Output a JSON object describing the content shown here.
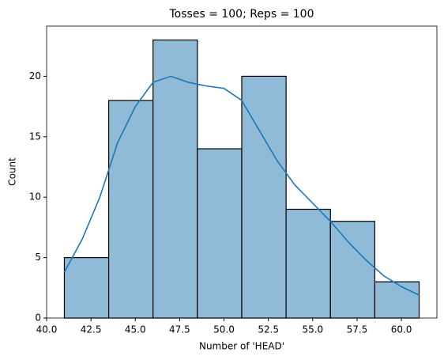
{
  "chart_data": {
    "type": "histogram",
    "title": "Tosses = 100; Reps = 100",
    "xlabel": "Number of 'HEAD'",
    "ylabel": "Count",
    "bins": [
      41,
      43.5,
      46,
      48.5,
      51,
      53.5,
      56,
      58.5,
      61
    ],
    "values": [
      5,
      18,
      23,
      14,
      20,
      9,
      8,
      3
    ],
    "color": "#8fbbd9",
    "edgecolor": "#000000",
    "kde": {
      "color": "#1f77b4",
      "x": [
        41,
        42,
        43,
        44,
        45,
        46,
        47,
        48,
        49,
        50,
        51,
        52,
        53,
        54,
        55,
        56,
        57,
        58,
        59,
        60,
        61
      ],
      "values": [
        3.8,
        6.5,
        10,
        14.5,
        17.5,
        19.5,
        20,
        19.5,
        19.2,
        19,
        18,
        15.5,
        13,
        11,
        9.5,
        8,
        6.3,
        4.8,
        3.5,
        2.6,
        1.9
      ]
    },
    "xlim": [
      40,
      62
    ],
    "xticks": [
      {
        "value": 40,
        "label": "40.0"
      },
      {
        "value": 42.5,
        "label": "42.5"
      },
      {
        "value": 45,
        "label": "45.0"
      },
      {
        "value": 47.5,
        "label": "47.5"
      },
      {
        "value": 50,
        "label": "50.0"
      },
      {
        "value": 52.5,
        "label": "52.5"
      },
      {
        "value": 55,
        "label": "55.0"
      },
      {
        "value": 57.5,
        "label": "57.5"
      },
      {
        "value": 60,
        "label": "60.0"
      }
    ],
    "ylim": [
      0,
      24.15
    ],
    "yticks": [
      0,
      5,
      10,
      15,
      20
    ]
  }
}
